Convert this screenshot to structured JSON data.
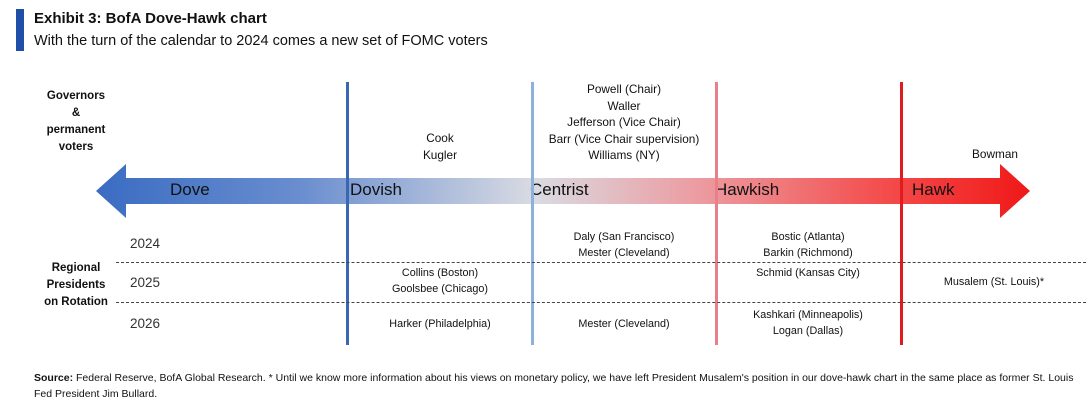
{
  "header": {
    "title": "Exhibit 3: BofA Dove-Hawk chart",
    "subtitle": "With the turn of the calendar to 2024 comes a new set of FOMC voters"
  },
  "colors": {
    "accent": "#1f4fa8",
    "dove_blue": "#3a6cc2",
    "hawk_red": "#f01818",
    "line_blue": "#3a66b4",
    "line_lightblue": "#8fb0da",
    "line_pink": "#e8808a",
    "line_red": "#e01c1c"
  },
  "labels": {
    "governors": [
      "Governors",
      "&",
      "permanent",
      "voters"
    ],
    "regional": [
      "Regional",
      "Presidents",
      "on Rotation"
    ]
  },
  "categories": {
    "dove": "Dove",
    "dovish": "Dovish",
    "centrist": "Centrist",
    "hawkish": "Hawkish",
    "hawk": "Hawk"
  },
  "governors": {
    "dovish": [
      "Cook",
      "Kugler"
    ],
    "centrist": [
      "Powell (Chair)",
      "Waller",
      "Jefferson (Vice Chair)",
      "Barr (Vice Chair supervision)",
      "Williams (NY)"
    ],
    "hawk": [
      "Bowman"
    ]
  },
  "years": [
    "2024",
    "2025",
    "2026"
  ],
  "rotation": {
    "y2024": {
      "centrist": [
        "Daly (San Francisco)",
        "Mester (Cleveland)"
      ],
      "hawkish": [
        "Bostic (Atlanta)",
        "Barkin (Richmond)"
      ]
    },
    "y2025": {
      "dovish": [
        "Collins (Boston)",
        "Goolsbee (Chicago)"
      ],
      "hawkish": [
        "Schmid (Kansas City)"
      ],
      "hawk": [
        "Musalem (St. Louis)*"
      ]
    },
    "y2026": {
      "dovish": [
        "Harker (Philadelphia)"
      ],
      "centrist": [
        "Mester (Cleveland)"
      ],
      "hawkish": [
        "Kashkari (Minneapolis)",
        "Logan (Dallas)"
      ]
    }
  },
  "source": {
    "label": "Source:",
    "text": " Federal Reserve, BofA Global Research. * Until we know more information about his views on monetary policy, we have left President Musalem's position in our dove-hawk chart in the same place as former St. Louis Fed President Jim Bullard."
  }
}
